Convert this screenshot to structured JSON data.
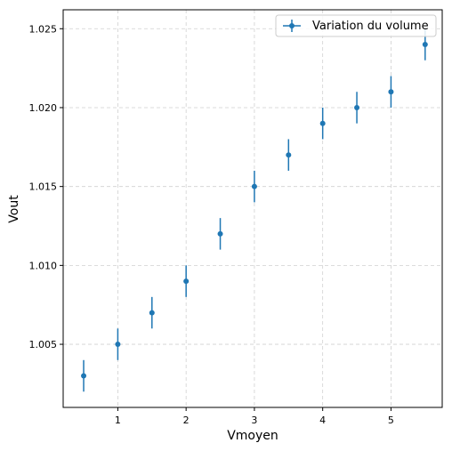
{
  "chart_data": {
    "type": "scatter",
    "title": "",
    "xlabel": "Vmoyen",
    "ylabel": "Vout",
    "xlim": [
      0.2,
      5.75
    ],
    "ylim": [
      1.001,
      1.0262
    ],
    "grid": true,
    "legend_position": "top-right",
    "x_ticks": [
      1,
      2,
      3,
      4,
      5
    ],
    "y_ticks": [
      1.005,
      1.01,
      1.015,
      1.02,
      1.025
    ],
    "x_tick_labels": [
      "1",
      "2",
      "3",
      "4",
      "5"
    ],
    "y_tick_labels": [
      "1.005",
      "1.010",
      "1.015",
      "1.020",
      "1.025"
    ],
    "series": [
      {
        "name": "Variation du volume",
        "color": "#1f77b4",
        "x": [
          0.5,
          1.0,
          1.5,
          2.0,
          2.5,
          3.0,
          3.5,
          4.0,
          4.5,
          5.0,
          5.5
        ],
        "y": [
          1.003,
          1.005,
          1.007,
          1.009,
          1.012,
          1.015,
          1.017,
          1.019,
          1.02,
          1.021,
          1.024
        ],
        "yerr": [
          0.001,
          0.001,
          0.001,
          0.001,
          0.001,
          0.001,
          0.001,
          0.001,
          0.001,
          0.001,
          0.001
        ]
      }
    ]
  }
}
